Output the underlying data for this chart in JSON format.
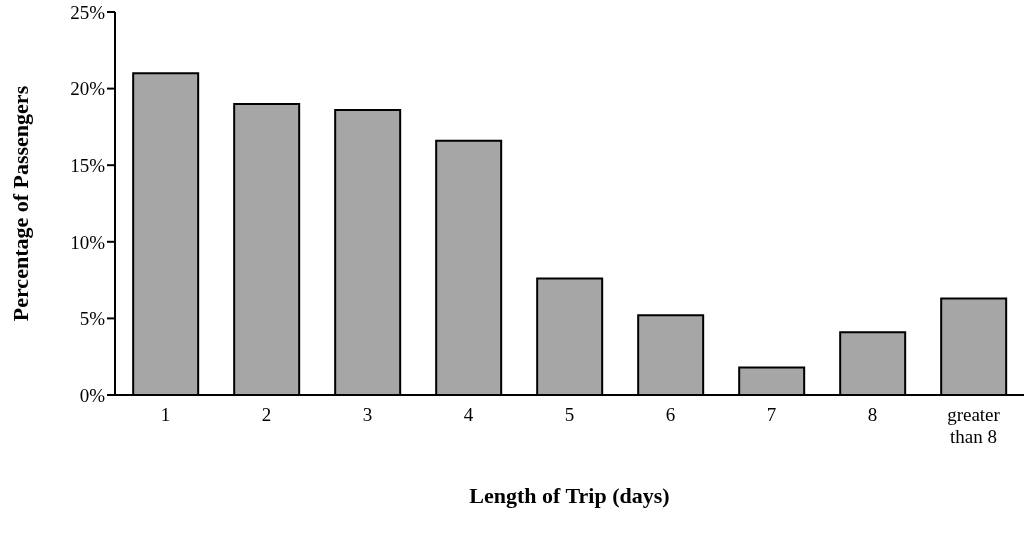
{
  "chart_data": {
    "type": "bar",
    "xlabel": "Length of Trip (days)",
    "ylabel": "Percentage of Passengers",
    "categories": [
      "1",
      "2",
      "3",
      "4",
      "5",
      "6",
      "7",
      "8",
      "greater than 8"
    ],
    "values": [
      21.0,
      19.0,
      18.6,
      16.6,
      7.6,
      5.2,
      1.8,
      4.1,
      6.3
    ],
    "color": "#a6a6a6",
    "ylim": [
      0,
      25
    ],
    "yticks": [
      {
        "value": 0,
        "label": "0%"
      },
      {
        "value": 5,
        "label": "5%"
      },
      {
        "value": 10,
        "label": "10%"
      },
      {
        "value": 15,
        "label": "15%"
      },
      {
        "value": 20,
        "label": "20%"
      },
      {
        "value": 25,
        "label": "25%"
      }
    ],
    "grid": false,
    "legend": false
  }
}
